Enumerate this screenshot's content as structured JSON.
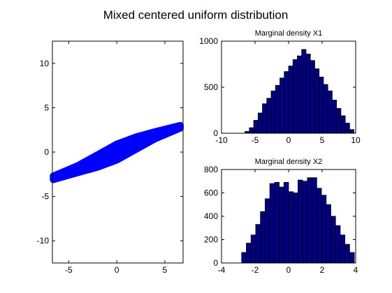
{
  "figure": {
    "title": "Mixed centered uniform distribution"
  },
  "chart_data": [
    {
      "type": "scatter",
      "title": "",
      "xlabel": "",
      "ylabel": "",
      "xlim": [
        -6.7,
        6.9
      ],
      "ylim": [
        -12.5,
        12.5
      ],
      "xticks": [
        -5,
        0,
        5
      ],
      "yticks": [
        -10,
        -5,
        0,
        5,
        10
      ],
      "marker_color": "#0000ff",
      "description_points": {
        "upper_edge": [
          [
            -6.6,
            -2.7
          ],
          [
            -4,
            -1.5
          ],
          [
            -2,
            -0.3
          ],
          [
            0,
            0.9
          ],
          [
            2,
            1.7
          ],
          [
            4,
            2.3
          ],
          [
            6.6,
            3.0
          ]
        ],
        "lower_edge": [
          [
            -6.6,
            -3.1
          ],
          [
            -4,
            -2.3
          ],
          [
            -2,
            -1.7
          ],
          [
            0,
            -0.9
          ],
          [
            2,
            0.3
          ],
          [
            4,
            1.5
          ],
          [
            6.6,
            2.7
          ]
        ]
      }
    },
    {
      "type": "bar",
      "title": "Marginal density X1",
      "xlim": [
        -10,
        10
      ],
      "ylim": [
        0,
        1000
      ],
      "xticks": [
        -10,
        -5,
        0,
        5,
        10
      ],
      "yticks": [
        0,
        500,
        1000
      ],
      "bar_color": "#000080",
      "bin_start": -6.5,
      "bin_width": 0.65,
      "values": [
        20,
        60,
        140,
        220,
        320,
        380,
        460,
        520,
        600,
        670,
        730,
        800,
        840,
        910,
        860,
        790,
        700,
        610,
        530,
        460,
        360,
        270,
        190,
        110,
        40
      ]
    },
    {
      "type": "bar",
      "title": "Marginal density X2",
      "xlim": [
        -4,
        4
      ],
      "ylim": [
        0,
        800
      ],
      "xticks": [
        -4,
        -2,
        0,
        2,
        4
      ],
      "yticks": [
        0,
        200,
        400,
        600,
        800
      ],
      "bar_color": "#000080",
      "bin_start": -2.8,
      "bin_width": 0.28,
      "values": [
        90,
        170,
        240,
        330,
        440,
        550,
        680,
        690,
        650,
        690,
        610,
        600,
        710,
        700,
        730,
        730,
        640,
        580,
        500,
        400,
        320,
        240,
        160,
        90
      ]
    }
  ]
}
